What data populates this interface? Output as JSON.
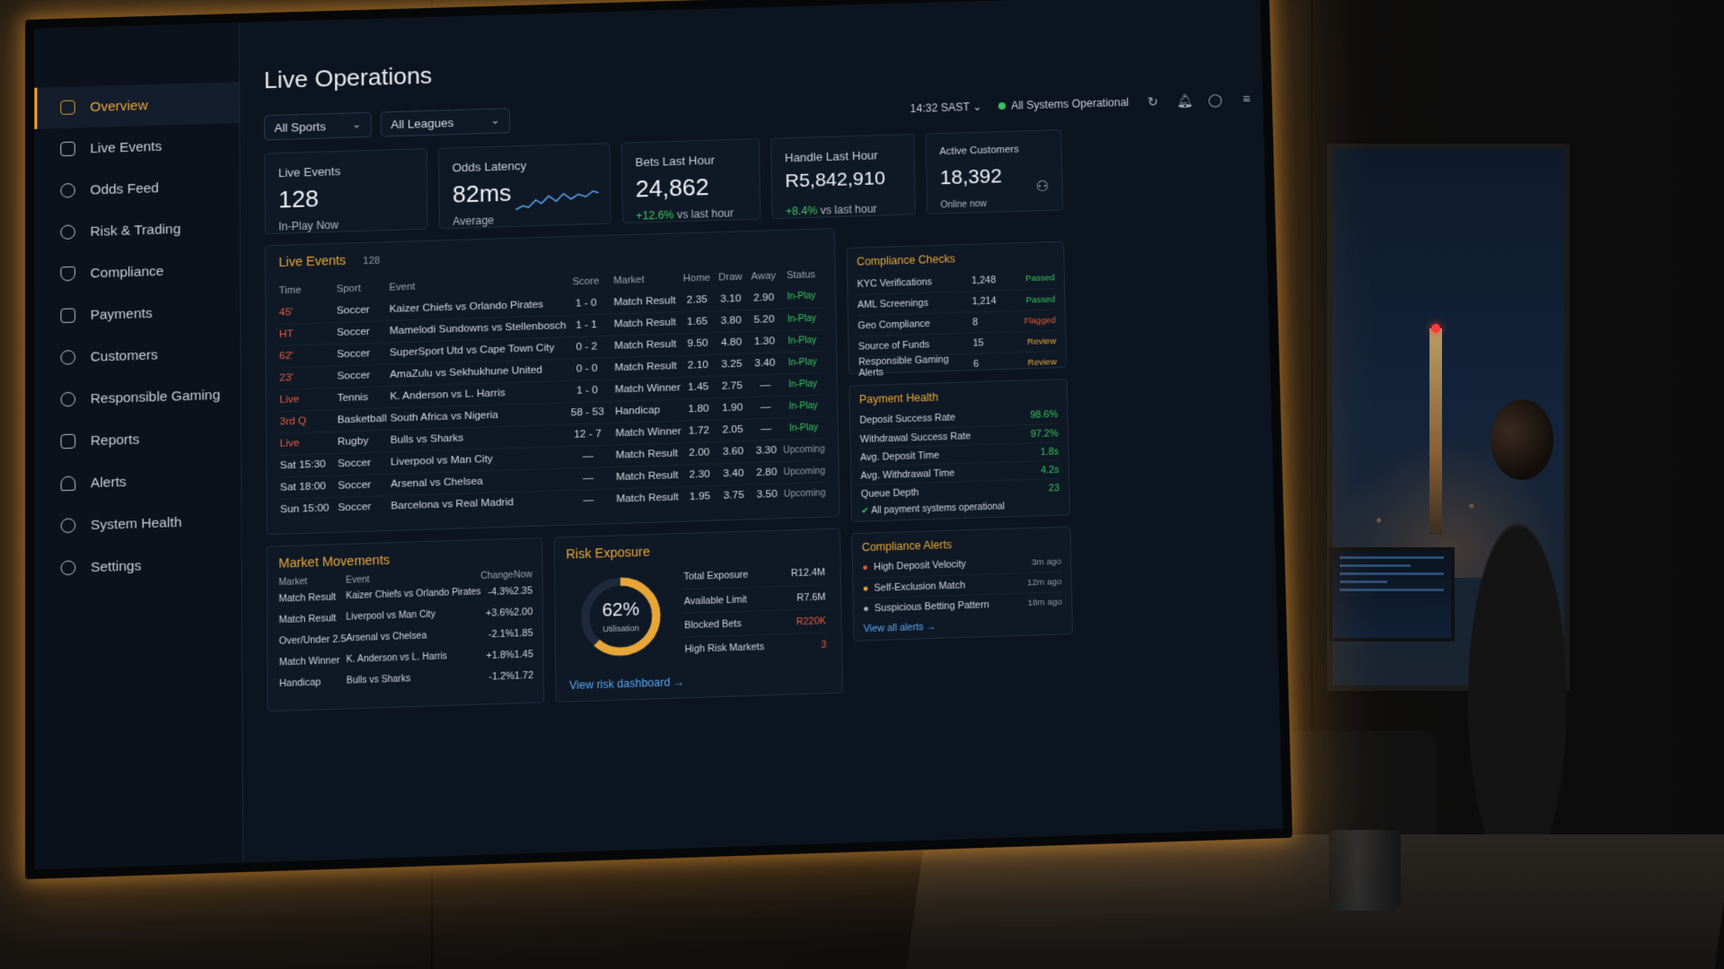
{
  "sidebar": {
    "items": [
      {
        "label": "Overview",
        "icon": "overview-icon"
      },
      {
        "label": "Live Events",
        "icon": "live-events-icon"
      },
      {
        "label": "Odds Feed",
        "icon": "odds-feed-icon"
      },
      {
        "label": "Risk & Trading",
        "icon": "risk-icon"
      },
      {
        "label": "Compliance",
        "icon": "shield-icon"
      },
      {
        "label": "Payments",
        "icon": "card-icon"
      },
      {
        "label": "Customers",
        "icon": "users-icon"
      },
      {
        "label": "Responsible Gaming",
        "icon": "rg-icon"
      },
      {
        "label": "Reports",
        "icon": "report-icon"
      },
      {
        "label": "Alerts",
        "icon": "bell-icon"
      },
      {
        "label": "System Health",
        "icon": "health-icon"
      },
      {
        "label": "Settings",
        "icon": "gear-icon"
      }
    ]
  },
  "header": {
    "title": "Live Operations",
    "filter_sports": "All Sports",
    "filter_leagues": "All Leagues",
    "time": "14:32 SAST",
    "status": "All Systems Operational"
  },
  "kpis": {
    "live_events": {
      "label": "Live Events",
      "value": "128",
      "sub": "In-Play Now"
    },
    "odds_latency": {
      "label": "Odds Latency",
      "value": "82ms",
      "sub": "Average"
    },
    "bets": {
      "label": "Bets Last Hour",
      "value": "24,862",
      "change": "+12.6%",
      "sub": "vs last hour"
    },
    "handle": {
      "label": "Handle Last Hour",
      "value": "R5,842,910",
      "change": "+8.4%",
      "sub": "vs last hour"
    },
    "customers": {
      "label": "Active Customers",
      "value": "18,392",
      "sub": "Online now"
    }
  },
  "live_events": {
    "title": "Live Events",
    "count": "128",
    "headers": [
      "Time",
      "Sport",
      "Event",
      "Score",
      "Market",
      "Home",
      "Draw",
      "Away",
      "Status"
    ],
    "rows": [
      [
        "45'",
        "Soccer",
        "Kaizer Chiefs vs Orlando Pirates",
        "1 - 0",
        "Match Result",
        "2.35",
        "3.10",
        "2.90",
        "In-Play"
      ],
      [
        "HT",
        "Soccer",
        "Mamelodi Sundowns vs Stellenbosch",
        "1 - 1",
        "Match Result",
        "1.65",
        "3.80",
        "5.20",
        "In-Play"
      ],
      [
        "62'",
        "Soccer",
        "SuperSport Utd vs Cape Town City",
        "0 - 2",
        "Match Result",
        "9.50",
        "4.80",
        "1.30",
        "In-Play"
      ],
      [
        "23'",
        "Soccer",
        "AmaZulu vs Sekhukhune United",
        "0 - 0",
        "Match Result",
        "2.10",
        "3.25",
        "3.40",
        "In-Play"
      ],
      [
        "Live",
        "Tennis",
        "K. Anderson vs L. Harris",
        "1 - 0",
        "Match Winner",
        "1.45",
        "2.75",
        "—",
        "In-Play"
      ],
      [
        "3rd Q",
        "Basketball",
        "South Africa vs Nigeria",
        "58 - 53",
        "Handicap",
        "1.80",
        "1.90",
        "—",
        "In-Play"
      ],
      [
        "Live",
        "Rugby",
        "Bulls vs Sharks",
        "12 - 7",
        "Match Winner",
        "1.72",
        "2.05",
        "—",
        "In-Play"
      ],
      [
        "Sat 15:30",
        "Soccer",
        "Liverpool vs Man City",
        "—",
        "Match Result",
        "2.00",
        "3.60",
        "3.30",
        "Upcoming"
      ],
      [
        "Sat 18:00",
        "Soccer",
        "Arsenal vs Chelsea",
        "—",
        "Match Result",
        "2.30",
        "3.40",
        "2.80",
        "Upcoming"
      ],
      [
        "Sun 15:00",
        "Soccer",
        "Barcelona vs Real Madrid",
        "—",
        "Match Result",
        "1.95",
        "3.75",
        "3.50",
        "Upcoming"
      ]
    ]
  },
  "compliance_checks": {
    "title": "Compliance Checks",
    "rows": [
      {
        "name": "KYC Verifications",
        "count": "1,248",
        "status": "Passed"
      },
      {
        "name": "AML Screenings",
        "count": "1,214",
        "status": "Passed"
      },
      {
        "name": "Geo Compliance",
        "count": "8",
        "status": "Flagged"
      },
      {
        "name": "Source of Funds",
        "count": "15",
        "status": "Review"
      },
      {
        "name": "Responsible Gaming Alerts",
        "count": "6",
        "status": "Review"
      }
    ]
  },
  "payment_health": {
    "title": "Payment Health",
    "rows": [
      {
        "name": "Deposit Success Rate",
        "value": "98.6%"
      },
      {
        "name": "Withdrawal Success Rate",
        "value": "97.2%"
      },
      {
        "name": "Avg. Deposit Time",
        "value": "1.8s"
      },
      {
        "name": "Avg. Withdrawal Time",
        "value": "4.2s"
      },
      {
        "name": "Queue Depth",
        "value": "23"
      }
    ],
    "footer": "All payment systems operational"
  },
  "market_movements": {
    "title": "Market Movements",
    "headers": [
      "Market",
      "Event",
      "Change",
      "Now"
    ],
    "rows": [
      [
        "Match Result",
        "Kaizer Chiefs vs Orlando Pirates",
        "-4.3%",
        "2.35"
      ],
      [
        "Match Result",
        "Liverpool vs Man City",
        "+3.6%",
        "2.00"
      ],
      [
        "Over/Under 2.5",
        "Arsenal vs Chelsea",
        "-2.1%",
        "1.85"
      ],
      [
        "Match Winner",
        "K. Anderson vs L. Harris",
        "+1.8%",
        "1.45"
      ],
      [
        "Handicap",
        "Bulls vs Sharks",
        "-1.2%",
        "1.72"
      ]
    ]
  },
  "risk_exposure": {
    "title": "Risk Exposure",
    "utilisation": "62%",
    "utilisation_fraction": 0.62,
    "utilisation_label": "Utilisation",
    "rows": [
      {
        "name": "Total Exposure",
        "value": "R12.4M"
      },
      {
        "name": "Available Limit",
        "value": "R7.6M"
      },
      {
        "name": "Blocked Bets",
        "value": "R220K"
      },
      {
        "name": "High Risk Markets",
        "value": "3"
      }
    ],
    "link": "View risk dashboard →"
  },
  "compliance_alerts": {
    "title": "Compliance Alerts",
    "rows": [
      {
        "name": "High Deposit Velocity",
        "time": "3m ago"
      },
      {
        "name": "Self-Exclusion Match",
        "time": "12m ago"
      },
      {
        "name": "Suspicious Betting Pattern",
        "time": "18m ago"
      }
    ],
    "link": "View all alerts →"
  },
  "colors": {
    "accent": "#e8a636",
    "positive": "#37c25a",
    "negative": "#e55a3c",
    "link": "#5aa6f0"
  }
}
